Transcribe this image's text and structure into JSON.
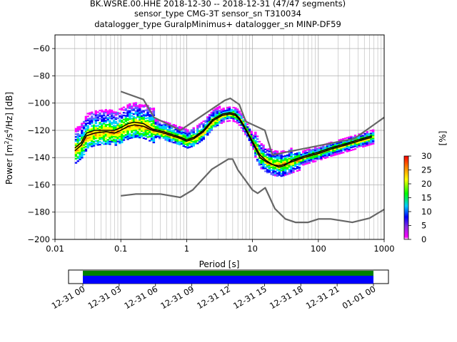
{
  "title_lines": [
    "BK.WSRE.00.HHE   2018-12-30 -- 2018-12-31  (47/47 segments)",
    "sensor_type CMG-3T sensor_sn T310034",
    "datalogger_type GuralpMinimus+ datalogger_sn MINP-DF59"
  ],
  "chart_data": {
    "type": "heatmap",
    "xlabel": "Period [s]",
    "ylabel": "Power [m²/s⁴/Hz] [dB]",
    "x_scale": "log",
    "xlim": [
      0.01,
      1000
    ],
    "ylim": [
      -200,
      -50
    ],
    "x_tick_labels": [
      "0.01",
      "0.1",
      "1",
      "10",
      "100",
      "1000"
    ],
    "y_ticks": [
      -200,
      -180,
      -160,
      -140,
      -120,
      -100,
      -80,
      -60
    ],
    "grid": true,
    "colorbar": {
      "label": "[%]",
      "ticks": [
        0,
        5,
        10,
        15,
        20,
        25,
        30
      ],
      "range": [
        0,
        30
      ],
      "colors": [
        "#ffffff",
        "#ff00ff",
        "#6060ff",
        "#0000ff",
        "#00ccff",
        "#00ff00",
        "#ffff00",
        "#ff8800",
        "#ff0000"
      ]
    },
    "noise_model_high": {
      "name": "",
      "x": [
        0.1,
        0.22,
        0.32,
        0.8,
        3.8,
        4.6,
        6.3,
        7.9,
        15.4,
        20,
        354.8,
        1000
      ],
      "y": [
        -91.5,
        -97.4,
        -110.5,
        -120,
        -98,
        -96.5,
        -101,
        -113.5,
        -120,
        -138,
        -126,
        -110.5
      ]
    },
    "noise_model_low": {
      "name": "",
      "x": [
        0.1,
        0.17,
        0.4,
        0.8,
        1.24,
        2.4,
        4.3,
        5.0,
        6.0,
        10,
        12,
        15.6,
        21.9,
        31.6,
        45,
        70,
        101,
        154,
        328,
        600,
        1000
      ],
      "y": [
        -168,
        -166.7,
        -166.7,
        -169.2,
        -163.7,
        -148.6,
        -141.1,
        -141.1,
        -149,
        -163.8,
        -166.2,
        -162.1,
        -177.5,
        -185,
        -187.5,
        -187.5,
        -185,
        -185,
        -187.5,
        -184.4,
        -178
      ]
    },
    "median_psd": {
      "name": "",
      "x": [
        0.02,
        0.025,
        0.03,
        0.04,
        0.06,
        0.08,
        0.1,
        0.13,
        0.16,
        0.22,
        0.3,
        0.45,
        0.6,
        0.8,
        1.0,
        1.3,
        1.8,
        2.5,
        3.5,
        4.5,
        5.5,
        6.3,
        7.5,
        9,
        11,
        13,
        16,
        20,
        25,
        30,
        40,
        60,
        100,
        150,
        250,
        400,
        650
      ],
      "y": [
        -135,
        -131,
        -124,
        -122,
        -121,
        -122,
        -120,
        -117,
        -116,
        -117,
        -120,
        -122,
        -124,
        -126,
        -128,
        -126,
        -121,
        -113,
        -109,
        -108,
        -109,
        -112,
        -118,
        -125,
        -133,
        -140,
        -143,
        -145,
        -146,
        -145,
        -143,
        -140,
        -137,
        -134,
        -131,
        -128,
        -125
      ]
    },
    "mode_psd": {
      "name": "",
      "x": [
        0.02,
        0.025,
        0.03,
        0.04,
        0.06,
        0.08,
        0.1,
        0.13,
        0.16,
        0.22,
        0.3,
        0.45,
        0.6,
        0.8,
        1.0,
        1.3,
        1.8,
        2.5,
        3.5,
        4.5,
        5.5,
        6.3,
        7.5,
        9,
        11,
        13,
        16,
        20,
        25,
        30,
        40,
        60,
        100,
        150,
        250,
        400,
        650
      ],
      "y": [
        -133,
        -129,
        -122,
        -120,
        -120,
        -120,
        -118,
        -115,
        -114,
        -115,
        -119,
        -121,
        -123,
        -125,
        -127,
        -125,
        -120,
        -112,
        -108,
        -107,
        -108,
        -111,
        -117,
        -124,
        -132,
        -138,
        -142,
        -145,
        -147,
        -146,
        -142,
        -139,
        -136,
        -133,
        -130,
        -127,
        -124
      ]
    }
  },
  "timeline": {
    "tick_labels": [
      "12-31 00",
      "12-31 03",
      "12-31 06",
      "12-31 09",
      "12-31 12",
      "12-31 15",
      "12-31 18",
      "12-31 21",
      "01-01 00"
    ],
    "bar_colors": [
      "#008000",
      "#0000ff"
    ]
  },
  "labels": {
    "xlabel": "Period [s]",
    "ylabel_prefix": "Power [",
    "ylabel_suffix": "] [dB]",
    "colorbar_label": "[%]"
  }
}
